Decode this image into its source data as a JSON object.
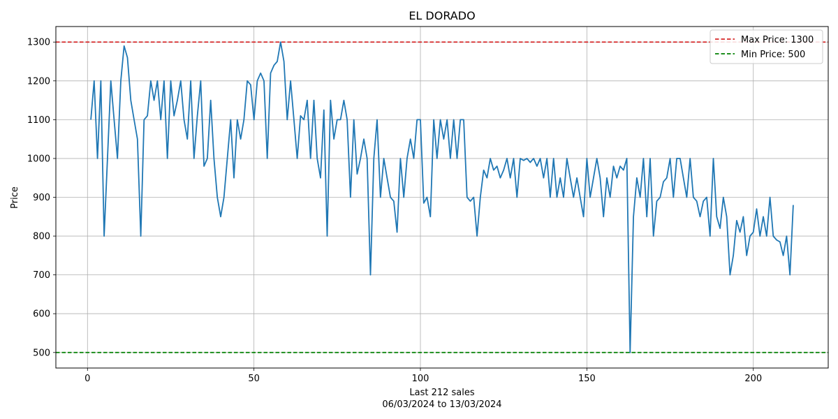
{
  "chart_data": {
    "type": "line",
    "title": "EL DORADO",
    "xlabel": "Last 212 sales",
    "xlabel_sub": "06/03/2024 to 13/03/2024",
    "ylabel": "Price",
    "xlim": [
      -9.5,
      222.5
    ],
    "ylim": [
      460,
      1340
    ],
    "x_ticks": [
      0,
      50,
      100,
      150,
      200
    ],
    "y_ticks": [
      500,
      600,
      700,
      800,
      900,
      1000,
      1100,
      1200,
      1300
    ],
    "grid": true,
    "legend_position": "top-right",
    "reference_lines": [
      {
        "label": "Max Price: 1300",
        "value": 1300,
        "color": "#d62728"
      },
      {
        "label": "Min Price: 500",
        "value": 500,
        "color": "#008000"
      }
    ],
    "series": [
      {
        "color": "#1f77b4",
        "x": [
          1,
          2,
          3,
          4,
          5,
          6,
          7,
          8,
          9,
          10,
          11,
          12,
          13,
          14,
          15,
          16,
          17,
          18,
          19,
          20,
          21,
          22,
          23,
          24,
          25,
          26,
          27,
          28,
          29,
          30,
          31,
          32,
          33,
          34,
          35,
          36,
          37,
          38,
          39,
          40,
          41,
          42,
          43,
          44,
          45,
          46,
          47,
          48,
          49,
          50,
          51,
          52,
          53,
          54,
          55,
          56,
          57,
          58,
          59,
          60,
          61,
          62,
          63,
          64,
          65,
          66,
          67,
          68,
          69,
          70,
          71,
          72,
          73,
          74,
          75,
          76,
          77,
          78,
          79,
          80,
          81,
          82,
          83,
          84,
          85,
          86,
          87,
          88,
          89,
          90,
          91,
          92,
          93,
          94,
          95,
          96,
          97,
          98,
          99,
          100,
          101,
          102,
          103,
          104,
          105,
          106,
          107,
          108,
          109,
          110,
          111,
          112,
          113,
          114,
          115,
          116,
          117,
          118,
          119,
          120,
          121,
          122,
          123,
          124,
          125,
          126,
          127,
          128,
          129,
          130,
          131,
          132,
          133,
          134,
          135,
          136,
          137,
          138,
          139,
          140,
          141,
          142,
          143,
          144,
          145,
          146,
          147,
          148,
          149,
          150,
          151,
          152,
          153,
          154,
          155,
          156,
          157,
          158,
          159,
          160,
          161,
          162,
          163,
          164,
          165,
          166,
          167,
          168,
          169,
          170,
          171,
          172,
          173,
          174,
          175,
          176,
          177,
          178,
          179,
          180,
          181,
          182,
          183,
          184,
          185,
          186,
          187,
          188,
          189,
          190,
          191,
          192,
          193,
          194,
          195,
          196,
          197,
          198,
          199,
          200,
          201,
          202,
          203,
          204,
          205,
          206,
          207,
          208,
          209,
          210,
          211,
          212
        ],
        "y": [
          1100,
          1200,
          1000,
          1200,
          800,
          1000,
          1200,
          1100,
          1000,
          1200,
          1290,
          1260,
          1150,
          1100,
          1050,
          800,
          1100,
          1110,
          1200,
          1150,
          1200,
          1100,
          1200,
          1000,
          1200,
          1110,
          1150,
          1200,
          1100,
          1050,
          1200,
          1000,
          1110,
          1200,
          980,
          1000,
          1150,
          1000,
          900,
          850,
          900,
          1000,
          1100,
          950,
          1100,
          1050,
          1100,
          1200,
          1190,
          1100,
          1200,
          1220,
          1200,
          1000,
          1220,
          1240,
          1250,
          1300,
          1250,
          1100,
          1200,
          1100,
          1000,
          1110,
          1100,
          1150,
          1000,
          1150,
          1000,
          950,
          1125,
          800,
          1150,
          1050,
          1100,
          1100,
          1150,
          1100,
          900,
          1100,
          960,
          1000,
          1050,
          1000,
          700,
          1000,
          1100,
          900,
          1000,
          950,
          900,
          890,
          810,
          1000,
          900,
          1000,
          1050,
          1000,
          1100,
          1100,
          885,
          900,
          850,
          1100,
          1000,
          1100,
          1050,
          1100,
          1000,
          1100,
          1000,
          1100,
          1100,
          900,
          890,
          900,
          800,
          900,
          970,
          950,
          1000,
          970,
          980,
          950,
          970,
          1000,
          950,
          1000,
          900,
          1000,
          995,
          1000,
          990,
          1000,
          980,
          1000,
          950,
          1000,
          900,
          1000,
          900,
          950,
          900,
          1000,
          950,
          900,
          950,
          900,
          850,
          1000,
          900,
          950,
          1000,
          950,
          850,
          950,
          900,
          980,
          950,
          980,
          970,
          1000,
          500,
          850,
          950,
          900,
          1000,
          850,
          1000,
          800,
          890,
          900,
          940,
          950,
          1000,
          900,
          1000,
          1000,
          950,
          900,
          1000,
          900,
          890,
          850,
          890,
          900,
          800,
          1000,
          850,
          820,
          900,
          850,
          700,
          750,
          840,
          810,
          850,
          750,
          800,
          810,
          870,
          800,
          850,
          800,
          900,
          800,
          790,
          785,
          750,
          800,
          700,
          880
        ]
      }
    ]
  }
}
